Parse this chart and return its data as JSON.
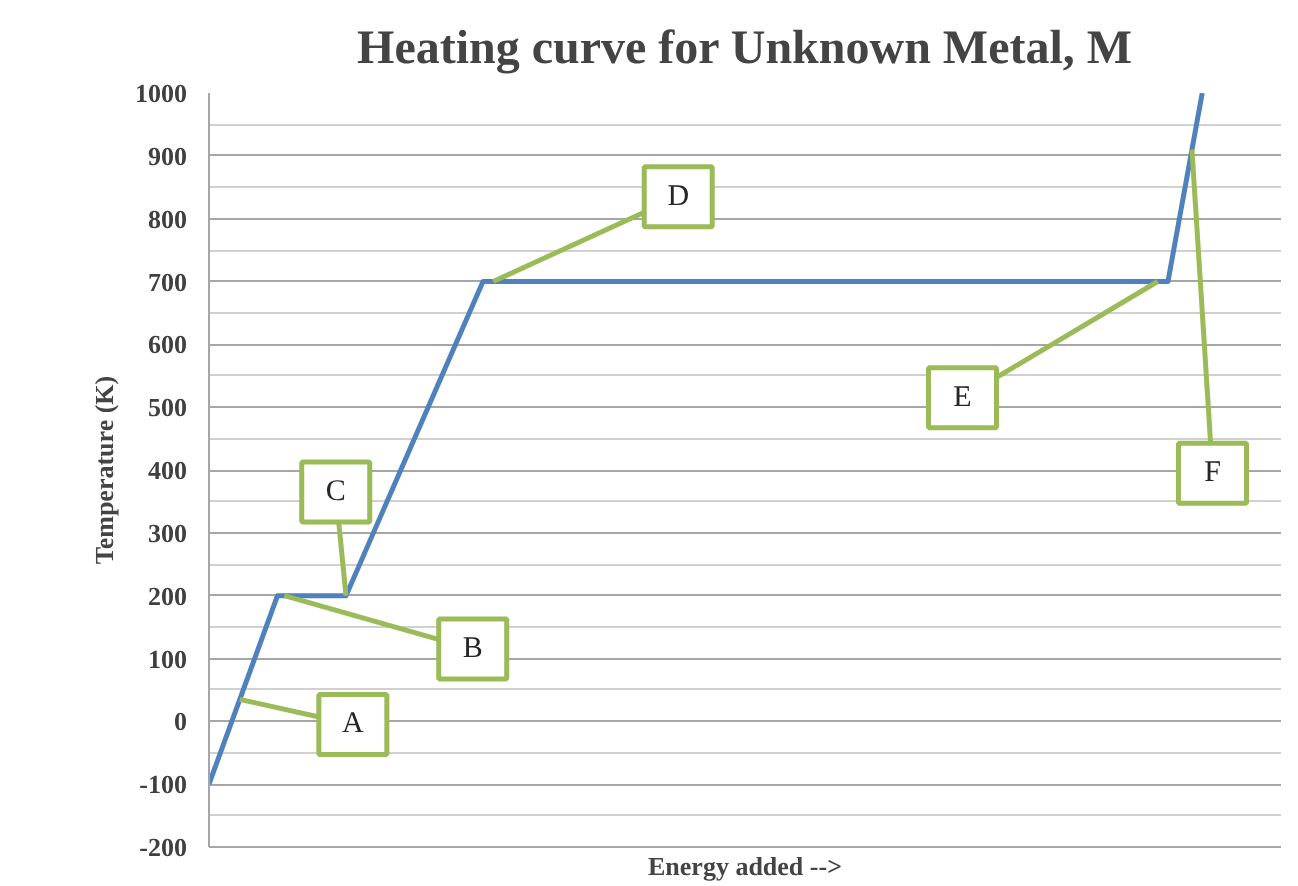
{
  "chart_data": {
    "type": "line",
    "title": "Heating curve for Unknown Metal, M",
    "xlabel": "Energy added -->",
    "ylabel": "Temperature (K)",
    "categories": [
      null,
      null,
      null,
      null,
      null,
      null,
      null,
      null,
      null,
      null,
      null,
      null,
      null,
      null,
      null,
      null,
      null,
      null,
      null,
      null,
      null,
      null,
      null,
      null,
      null,
      null,
      null,
      null,
      null,
      null,
      null,
      null
    ],
    "series": [
      {
        "color": "#4f81bd",
        "values": [
          -100,
          50,
          200,
          200,
          200,
          325,
          450,
          575,
          700,
          700,
          700,
          700,
          700,
          700,
          700,
          700,
          700,
          700,
          700,
          700,
          700,
          700,
          700,
          700,
          700,
          700,
          700,
          700,
          700,
          1000,
          null,
          null
        ]
      }
    ],
    "ylim": [
      -200,
      1000
    ],
    "yticks": [
      -200,
      -100,
      0,
      100,
      200,
      300,
      400,
      500,
      600,
      700,
      800,
      900,
      1000
    ],
    "grid": "y",
    "tick_labels": "y",
    "marker": "none",
    "line_style": "solid",
    "annotations": [
      "A",
      "B",
      "C",
      "D",
      "E",
      "F"
    ]
  }
}
